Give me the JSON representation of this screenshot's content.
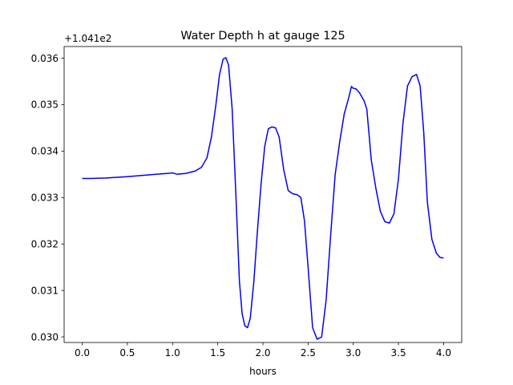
{
  "chart_data": {
    "type": "line",
    "title": "Water Depth h at gauge 125",
    "xlabel": "hours",
    "ylabel": "",
    "offset_label": "+1.041e2",
    "offset_value": 104.1,
    "xlim": [
      -0.2,
      4.2
    ],
    "ylim": [
      0.02988,
      0.03625
    ],
    "xticks": [
      0.0,
      0.5,
      1.0,
      1.5,
      2.0,
      2.5,
      3.0,
      3.5,
      4.0
    ],
    "xtick_labels": [
      "0.0",
      "0.5",
      "1.0",
      "1.5",
      "2.0",
      "2.5",
      "3.0",
      "3.5",
      "4.0"
    ],
    "yticks": [
      0.03,
      0.031,
      0.032,
      0.033,
      0.034,
      0.035,
      0.036
    ],
    "ytick_labels": [
      "0.030",
      "0.031",
      "0.032",
      "0.033",
      "0.034",
      "0.035",
      "0.036"
    ],
    "grid": false,
    "series": [
      {
        "color": "#0000ff",
        "points": [
          [
            0.0,
            0.03341
          ],
          [
            0.1,
            0.03341
          ],
          [
            0.25,
            0.03342
          ],
          [
            0.5,
            0.03345
          ],
          [
            0.75,
            0.03349
          ],
          [
            0.95,
            0.03352
          ],
          [
            1.0,
            0.03353
          ],
          [
            1.05,
            0.0335
          ],
          [
            1.15,
            0.03352
          ],
          [
            1.25,
            0.03357
          ],
          [
            1.32,
            0.03365
          ],
          [
            1.38,
            0.03385
          ],
          [
            1.43,
            0.0343
          ],
          [
            1.48,
            0.035
          ],
          [
            1.52,
            0.03565
          ],
          [
            1.56,
            0.03598
          ],
          [
            1.59,
            0.03601
          ],
          [
            1.62,
            0.03585
          ],
          [
            1.66,
            0.0349
          ],
          [
            1.7,
            0.0331
          ],
          [
            1.74,
            0.0312
          ],
          [
            1.77,
            0.0305
          ],
          [
            1.8,
            0.03024
          ],
          [
            1.83,
            0.0302
          ],
          [
            1.86,
            0.0304
          ],
          [
            1.9,
            0.0312
          ],
          [
            1.94,
            0.0323
          ],
          [
            1.98,
            0.0333
          ],
          [
            2.02,
            0.0341
          ],
          [
            2.06,
            0.03448
          ],
          [
            2.1,
            0.03452
          ],
          [
            2.14,
            0.0345
          ],
          [
            2.18,
            0.0343
          ],
          [
            2.23,
            0.0336
          ],
          [
            2.28,
            0.03315
          ],
          [
            2.33,
            0.03308
          ],
          [
            2.38,
            0.03306
          ],
          [
            2.42,
            0.033
          ],
          [
            2.46,
            0.0325
          ],
          [
            2.5,
            0.0315
          ],
          [
            2.55,
            0.0302
          ],
          [
            2.6,
            0.02995
          ],
          [
            2.65,
            0.03
          ],
          [
            2.7,
            0.0308
          ],
          [
            2.75,
            0.0322
          ],
          [
            2.8,
            0.0335
          ],
          [
            2.85,
            0.0342
          ],
          [
            2.9,
            0.0348
          ],
          [
            2.95,
            0.03515
          ],
          [
            2.98,
            0.03539
          ],
          [
            3.0,
            0.03535
          ],
          [
            3.03,
            0.03534
          ],
          [
            3.07,
            0.03525
          ],
          [
            3.12,
            0.03508
          ],
          [
            3.15,
            0.0349
          ],
          [
            3.2,
            0.0338
          ],
          [
            3.25,
            0.0332
          ],
          [
            3.3,
            0.0327
          ],
          [
            3.35,
            0.03248
          ],
          [
            3.4,
            0.03245
          ],
          [
            3.45,
            0.03265
          ],
          [
            3.5,
            0.0334
          ],
          [
            3.55,
            0.0346
          ],
          [
            3.6,
            0.0354
          ],
          [
            3.65,
            0.0356
          ],
          [
            3.7,
            0.03565
          ],
          [
            3.74,
            0.0354
          ],
          [
            3.78,
            0.0344
          ],
          [
            3.82,
            0.0329
          ],
          [
            3.87,
            0.0321
          ],
          [
            3.92,
            0.0318
          ],
          [
            3.96,
            0.03171
          ],
          [
            4.0,
            0.0317
          ]
        ]
      }
    ]
  }
}
